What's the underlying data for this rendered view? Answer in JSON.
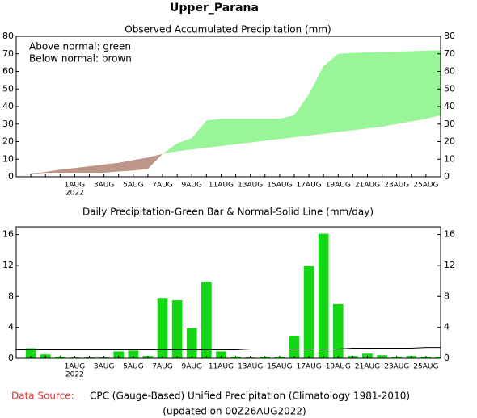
{
  "title": "Upper_Parana",
  "chart_data": [
    {
      "type": "area",
      "title": "Observed Accumulated Precipitation (mm)",
      "annotations": [
        "Above normal: green",
        "Below normal: brown"
      ],
      "categories": [
        null,
        null,
        null,
        null,
        "1AUG",
        null,
        "3AUG",
        null,
        "5AUG",
        null,
        "7AUG",
        null,
        "9AUG",
        null,
        "11AUG",
        null,
        "13AUG",
        null,
        "15AUG",
        null,
        "17AUG",
        null,
        "19AUG",
        null,
        "21AUG",
        null,
        "23AUG",
        null,
        "25AUG",
        null
      ],
      "x_year": "2022",
      "series": [
        {
          "name": "Observed",
          "values": [
            0,
            1.3,
            1.8,
            2.0,
            2.1,
            2.2,
            2.3,
            3.0,
            3.5,
            4.5,
            13,
            19,
            22,
            32,
            33,
            33,
            33,
            33,
            33,
            35,
            47,
            63,
            70,
            70.5,
            70.8,
            71,
            71.2,
            71.5,
            71.8,
            72
          ]
        },
        {
          "name": "Normal",
          "values": [
            0,
            1.5,
            2.8,
            4,
            5,
            6,
            7,
            8,
            9.5,
            11,
            13,
            14.5,
            15.5,
            16.5,
            17.5,
            18.5,
            19.5,
            20.5,
            21.5,
            22.5,
            23.5,
            24.5,
            25.5,
            26.5,
            27.5,
            28.5,
            30,
            31.5,
            33,
            35
          ]
        }
      ],
      "above_color": "#98f598",
      "below_color": "#bd9589",
      "ylim": [
        0,
        80
      ],
      "yticks": [
        0,
        10,
        20,
        30,
        40,
        50,
        60,
        70,
        80
      ]
    },
    {
      "type": "bar",
      "title": "Daily Precipitation-Green Bar & Normal-Solid Line (mm/day)",
      "categories": [
        null,
        null,
        null,
        null,
        "1AUG",
        null,
        "3AUG",
        null,
        "5AUG",
        null,
        "7AUG",
        null,
        "9AUG",
        null,
        "11AUG",
        null,
        "13AUG",
        null,
        "15AUG",
        null,
        "17AUG",
        null,
        "19AUG",
        null,
        "21AUG",
        null,
        "23AUG",
        null,
        "25AUG",
        null
      ],
      "x_year": "2022",
      "series": [
        {
          "name": "Daily",
          "color": "#14d714",
          "values": [
            null,
            1.3,
            0.5,
            0.2,
            0.1,
            0.1,
            0.1,
            0.9,
            1.0,
            0.3,
            7.8,
            7.5,
            3.9,
            9.9,
            0.9,
            0.2,
            0.1,
            0.2,
            0.2,
            2.9,
            11.9,
            16.1,
            7.0,
            0.3,
            0.6,
            0.4,
            0.2,
            0.3,
            0.2,
            0.2
          ]
        },
        {
          "name": "Normal",
          "color": "#000000",
          "values": [
            1.1,
            1.1,
            1.1,
            1.1,
            1.1,
            1.1,
            1.1,
            1.1,
            1.1,
            1.1,
            1.1,
            1.1,
            1.1,
            1.1,
            1.1,
            1.1,
            1.2,
            1.2,
            1.2,
            1.2,
            1.2,
            1.2,
            1.2,
            1.3,
            1.3,
            1.3,
            1.3,
            1.3,
            1.4,
            1.4
          ]
        }
      ],
      "ylim": [
        0,
        17
      ],
      "yticks": [
        0,
        4,
        8,
        12,
        16
      ]
    }
  ],
  "footer": {
    "source_label": "Data Source:",
    "source_text": "CPC (Gauge-Based) Unified Precipitation (Climatology 1981-2010)",
    "updated": "(updated on 00Z26AUG2022)"
  }
}
